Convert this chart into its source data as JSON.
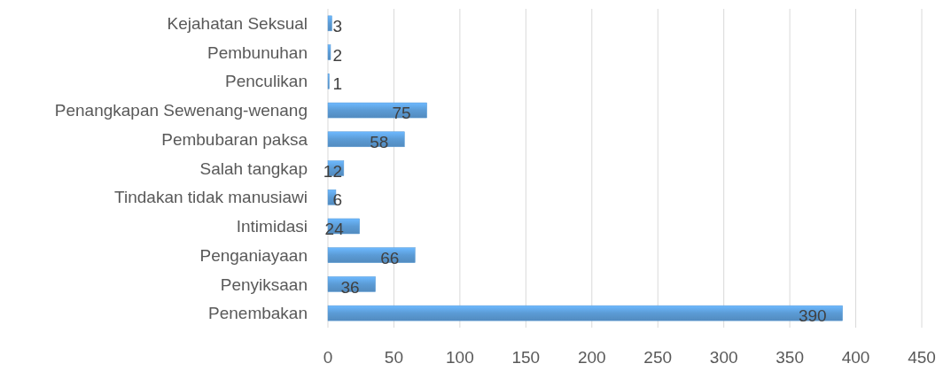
{
  "chart_data": {
    "type": "bar",
    "orientation": "horizontal",
    "categories": [
      "Kejahatan Seksual",
      "Pembunuhan",
      "Penculikan",
      "Penangkapan Sewenang-wenang",
      "Pembubaran paksa",
      "Salah tangkap",
      "Tindakan tidak manusiawi",
      "Intimidasi",
      "Penganiayaan",
      "Penyiksaan",
      "Penembakan"
    ],
    "values": [
      3,
      2,
      1,
      75,
      58,
      12,
      6,
      24,
      66,
      36,
      390
    ],
    "color": "#5b9bd5",
    "xlim": [
      0,
      450
    ],
    "xticks": [
      0,
      50,
      100,
      150,
      200,
      250,
      300,
      350,
      400,
      450
    ],
    "grid": "x",
    "data_labels": true
  }
}
